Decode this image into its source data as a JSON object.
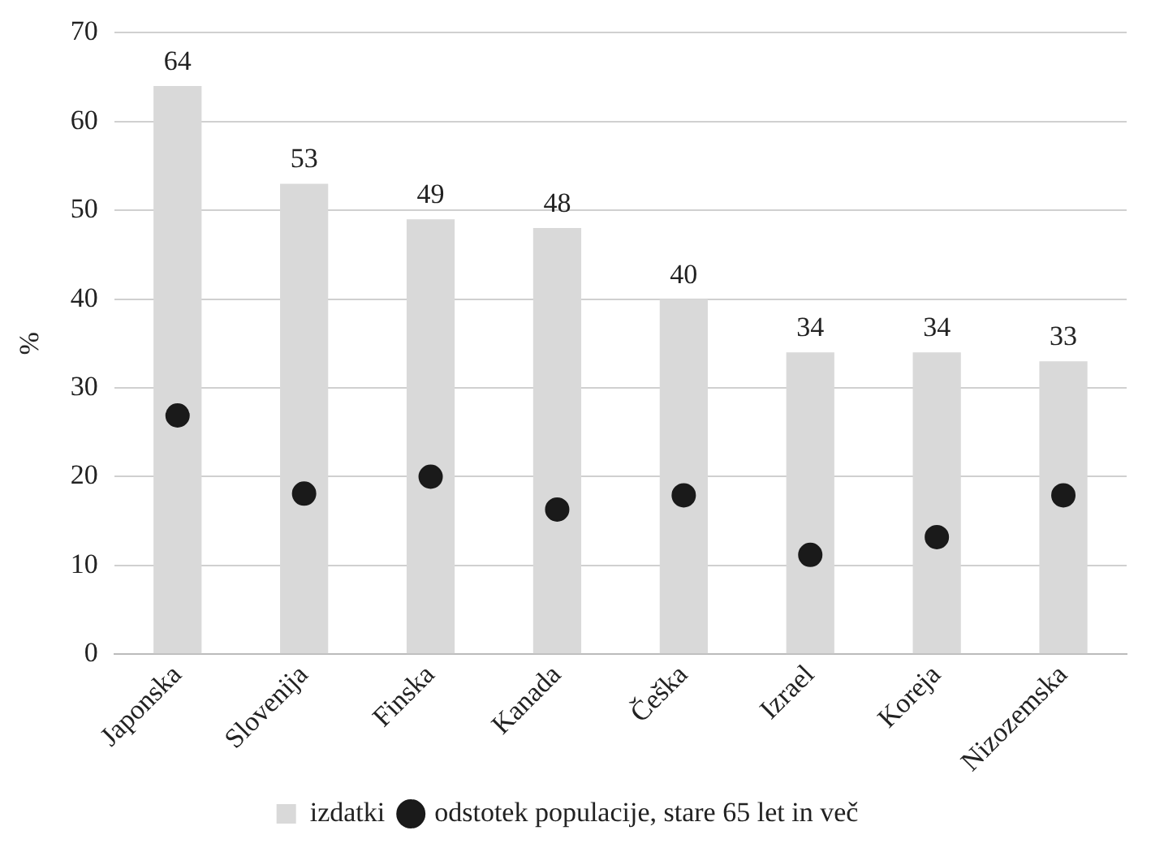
{
  "chart_data": {
    "type": "bar",
    "ylabel": "%",
    "categories": [
      "Japonska",
      "Slovenija",
      "Finska",
      "Kanada",
      "Češka",
      "Izrael",
      "Koreja",
      "Nizozemska"
    ],
    "series": [
      {
        "name": "izdatki",
        "color": "#d9d9d9",
        "values": [
          64,
          53,
          49,
          48,
          40,
          34,
          34,
          33
        ],
        "value_labels": [
          "64",
          "53",
          "49",
          "48",
          "40",
          "34",
          "34",
          "33"
        ]
      },
      {
        "name": "odstotek populacije, stare 65 let in več",
        "type": "scatter",
        "color": "#1a1a1a",
        "values": [
          26.9,
          18.1,
          20,
          16.3,
          17.9,
          11.2,
          13.2,
          17.9
        ]
      }
    ],
    "ylim": [
      0,
      70
    ],
    "yticks": [
      0,
      10,
      20,
      30,
      40,
      50,
      60,
      70
    ],
    "grid": "y",
    "legend": "bottom",
    "marker": "circle"
  }
}
